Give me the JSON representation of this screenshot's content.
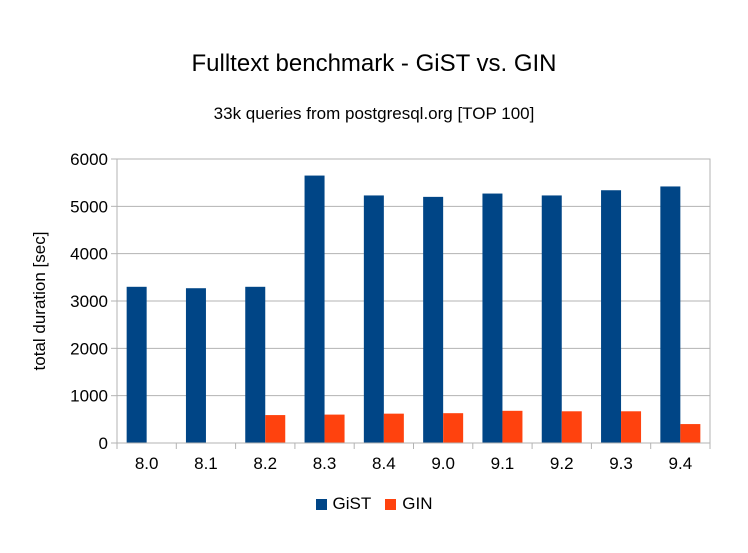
{
  "chart_data": {
    "type": "bar",
    "title": "Fulltext benchmark - GiST vs. GIN",
    "subtitle": "33k queries from postgresql.org [TOP 100]",
    "xlabel": "",
    "ylabel": "total duration [sec]",
    "categories": [
      "8.0",
      "8.1",
      "8.2",
      "8.3",
      "8.4",
      "9.0",
      "9.1",
      "9.2",
      "9.3",
      "9.4"
    ],
    "series": [
      {
        "name": "GiST",
        "color": "#004586",
        "values": [
          3300,
          3270,
          3300,
          5650,
          5230,
          5200,
          5270,
          5230,
          5340,
          5420
        ]
      },
      {
        "name": "GIN",
        "color": "#ff420e",
        "values": [
          0,
          0,
          590,
          600,
          620,
          630,
          680,
          670,
          670,
          400
        ]
      }
    ],
    "ylim": [
      0,
      6000
    ],
    "yticks": [
      "0",
      "1000",
      "2000",
      "3000",
      "4000",
      "5000",
      "6000"
    ],
    "grid": true,
    "legend_position": "bottom"
  }
}
